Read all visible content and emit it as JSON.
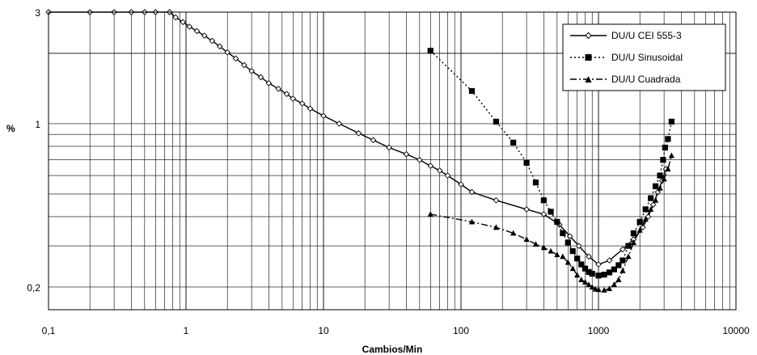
{
  "chart_data": {
    "type": "line",
    "xlabel": "Cambios/Min",
    "ylabel": "%",
    "x_scale": "log",
    "y_scale": "log",
    "xlim": [
      0.1,
      10000
    ],
    "ylim": [
      0.16,
      3
    ],
    "x_ticks": [
      {
        "v": 0.1,
        "label": "0,1"
      },
      {
        "v": 1,
        "label": "1"
      },
      {
        "v": 10,
        "label": "10"
      },
      {
        "v": 100,
        "label": "100"
      },
      {
        "v": 1000,
        "label": "1000"
      },
      {
        "v": 10000,
        "label": "10000"
      }
    ],
    "y_ticks": [
      {
        "v": 3,
        "label": "3"
      },
      {
        "v": 1,
        "label": "1"
      },
      {
        "v": 0.2,
        "label": "0,2"
      }
    ],
    "grid": true,
    "legend_position": "top-right",
    "series": [
      {
        "name": "DU/U CEI 555-3",
        "color": "#000000",
        "line": "solid",
        "marker": "diamond-open",
        "points": [
          [
            0.1,
            3.0
          ],
          [
            0.2,
            3.0
          ],
          [
            0.3,
            3.0
          ],
          [
            0.4,
            3.0
          ],
          [
            0.5,
            3.0
          ],
          [
            0.6,
            3.0
          ],
          [
            0.76,
            3.0
          ],
          [
            0.84,
            2.85
          ],
          [
            0.95,
            2.72
          ],
          [
            1.06,
            2.6
          ],
          [
            1.2,
            2.49
          ],
          [
            1.36,
            2.38
          ],
          [
            1.55,
            2.26
          ],
          [
            1.76,
            2.14
          ],
          [
            2.0,
            2.02
          ],
          [
            2.3,
            1.9
          ],
          [
            2.65,
            1.78
          ],
          [
            3.0,
            1.68
          ],
          [
            3.5,
            1.58
          ],
          [
            4.0,
            1.49
          ],
          [
            4.7,
            1.41
          ],
          [
            5.4,
            1.34
          ],
          [
            6.0,
            1.28
          ],
          [
            7.0,
            1.22
          ],
          [
            8.0,
            1.16
          ],
          [
            10.0,
            1.08
          ],
          [
            13.0,
            1.0
          ],
          [
            18.0,
            0.91
          ],
          [
            23.0,
            0.85
          ],
          [
            30.0,
            0.79
          ],
          [
            40.0,
            0.74
          ],
          [
            50.0,
            0.7
          ],
          [
            60.0,
            0.66
          ],
          [
            70.0,
            0.63
          ],
          [
            80.0,
            0.6
          ],
          [
            100.0,
            0.55
          ],
          [
            120.0,
            0.51
          ],
          [
            180.0,
            0.47
          ],
          [
            300.0,
            0.43
          ],
          [
            400.0,
            0.41
          ],
          [
            520.0,
            0.37
          ],
          [
            620.0,
            0.33
          ],
          [
            720.0,
            0.3
          ],
          [
            850.0,
            0.27
          ],
          [
            1000.0,
            0.25
          ],
          [
            1200.0,
            0.26
          ],
          [
            1500.0,
            0.29
          ],
          [
            1800.0,
            0.32
          ],
          [
            2100.0,
            0.36
          ],
          [
            2300.0,
            0.4
          ],
          [
            2500.0,
            0.45
          ],
          [
            2700.0,
            0.51
          ],
          [
            2900.0,
            0.57
          ],
          [
            3100.0,
            0.64
          ]
        ]
      },
      {
        "name": "DU/U Sinusoidal",
        "color": "#000000",
        "line": "dotted",
        "marker": "square",
        "points": [
          [
            60,
            2.05
          ],
          [
            120,
            1.38
          ],
          [
            180,
            1.02
          ],
          [
            240,
            0.83
          ],
          [
            300,
            0.68
          ],
          [
            350,
            0.56
          ],
          [
            400,
            0.47
          ],
          [
            450,
            0.42
          ],
          [
            500,
            0.38
          ],
          [
            550,
            0.34
          ],
          [
            600,
            0.31
          ],
          [
            650,
            0.285
          ],
          [
            700,
            0.265
          ],
          [
            750,
            0.25
          ],
          [
            800,
            0.24
          ],
          [
            850,
            0.232
          ],
          [
            900,
            0.228
          ],
          [
            1000,
            0.224
          ],
          [
            1100,
            0.226
          ],
          [
            1200,
            0.231
          ],
          [
            1300,
            0.238
          ],
          [
            1400,
            0.248
          ],
          [
            1500,
            0.26
          ],
          [
            1650,
            0.3
          ],
          [
            1800,
            0.34
          ],
          [
            2000,
            0.38
          ],
          [
            2200,
            0.43
          ],
          [
            2400,
            0.48
          ],
          [
            2600,
            0.54
          ],
          [
            2800,
            0.6
          ],
          [
            2950,
            0.7
          ],
          [
            3050,
            0.79
          ],
          [
            3200,
            0.86
          ],
          [
            3400,
            1.02
          ]
        ]
      },
      {
        "name": "DU/U Cuadrada",
        "color": "#000000",
        "line": "dash-dot",
        "marker": "triangle",
        "points": [
          [
            60,
            0.41
          ],
          [
            120,
            0.38
          ],
          [
            180,
            0.36
          ],
          [
            240,
            0.34
          ],
          [
            300,
            0.32
          ],
          [
            350,
            0.305
          ],
          [
            400,
            0.295
          ],
          [
            450,
            0.285
          ],
          [
            500,
            0.275
          ],
          [
            550,
            0.27
          ],
          [
            600,
            0.255
          ],
          [
            650,
            0.24
          ],
          [
            700,
            0.225
          ],
          [
            750,
            0.215
          ],
          [
            800,
            0.21
          ],
          [
            850,
            0.205
          ],
          [
            900,
            0.2
          ],
          [
            950,
            0.196
          ],
          [
            1000,
            0.195
          ],
          [
            1100,
            0.194
          ],
          [
            1200,
            0.197
          ],
          [
            1300,
            0.205
          ],
          [
            1400,
            0.215
          ],
          [
            1500,
            0.235
          ],
          [
            1650,
            0.27
          ],
          [
            1800,
            0.31
          ],
          [
            2000,
            0.35
          ],
          [
            2200,
            0.39
          ],
          [
            2400,
            0.43
          ],
          [
            2600,
            0.47
          ],
          [
            2800,
            0.53
          ],
          [
            3000,
            0.58
          ],
          [
            3200,
            0.64
          ],
          [
            3400,
            0.73
          ]
        ]
      }
    ]
  }
}
